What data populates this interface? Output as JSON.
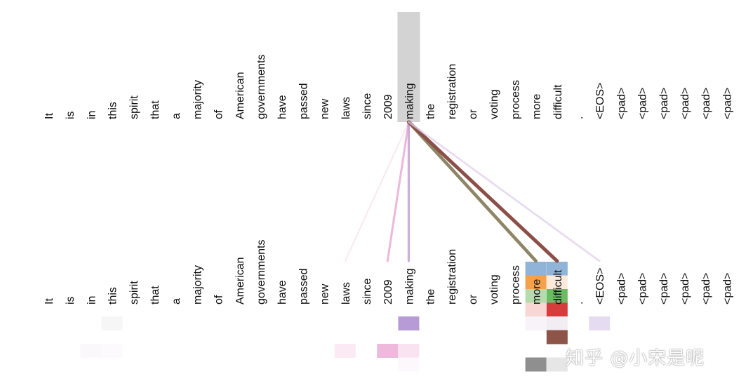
{
  "tokens": [
    "It",
    "is",
    "in",
    "this",
    "spirit",
    "that",
    "a",
    "majority",
    "of",
    "American",
    "governments",
    "have",
    "passed",
    "new",
    "laws",
    "since",
    "2009",
    "making",
    "the",
    "registration",
    "or",
    "voting",
    "process",
    "more",
    "difficult",
    ".",
    "<EOS>",
    "<pad>",
    "<pad>",
    "<pad>",
    "<pad>",
    "<pad>",
    "<pad>"
  ],
  "selected_token_index": 17,
  "attention_links": [
    {
      "to": 14,
      "color": "#f7dcea",
      "weight": 0.15
    },
    {
      "to": 16,
      "color": "#e8a5d0",
      "weight": 0.45
    },
    {
      "to": 17,
      "color": "#c49ad6",
      "weight": 0.5
    },
    {
      "to": 23,
      "color": "#8a8060",
      "weight": 0.9
    },
    {
      "to": 24,
      "color": "#8b4f48",
      "weight": 1.0
    },
    {
      "to": 26,
      "color": "#e0cdec",
      "weight": 0.35
    }
  ],
  "head_rows": 6,
  "heat_cells": [
    {
      "tok": 23,
      "row": 0,
      "color": "#8fb4d8"
    },
    {
      "tok": 24,
      "row": 0,
      "color": "#8fb4d8"
    },
    {
      "tok": 23,
      "row": 1,
      "color": "#f5a04a"
    },
    {
      "tok": 24,
      "row": 1,
      "color": "#fbe9dc"
    },
    {
      "tok": 23,
      "row": 2,
      "color": "#b6dcae"
    },
    {
      "tok": 24,
      "row": 2,
      "color": "#6cbb63"
    },
    {
      "tok": 23,
      "row": 3,
      "color": "#f7d6d4"
    },
    {
      "tok": 24,
      "row": 3,
      "color": "#d63c3c"
    },
    {
      "tok": 3,
      "row": 4,
      "color": "#f6f6f6"
    },
    {
      "tok": 17,
      "row": 4,
      "color": "#b79bd6"
    },
    {
      "tok": 23,
      "row": 4,
      "color": "#f7f3f8"
    },
    {
      "tok": 24,
      "row": 4,
      "color": "#f2ecf3"
    },
    {
      "tok": 26,
      "row": 4,
      "color": "#e6dcf1"
    },
    {
      "tok": 24,
      "row": 5,
      "color": "#8c5547"
    },
    {
      "tok": 2,
      "row": 6,
      "color": "#fbf8fb"
    },
    {
      "tok": 3,
      "row": 6,
      "color": "#fdfafd"
    },
    {
      "tok": 14,
      "row": 6,
      "color": "#fbe9f3"
    },
    {
      "tok": 16,
      "row": 6,
      "color": "#eeb9dc"
    },
    {
      "tok": 17,
      "row": 6,
      "color": "#f9e3f1"
    },
    {
      "tok": 23,
      "row": 7,
      "color": "#8f8f8f"
    },
    {
      "tok": 24,
      "row": 7,
      "color": "#e6e6e6"
    },
    {
      "tok": 17,
      "row": 7,
      "color": "#fcf8fb"
    }
  ],
  "colors": {
    "selected_highlight": "#d3d3d3",
    "text": "#111111"
  },
  "watermark": "知乎 @小宋是呢"
}
